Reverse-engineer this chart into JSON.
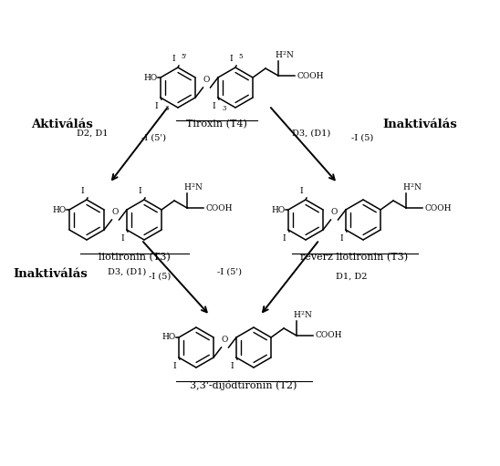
{
  "background_color": "#ffffff",
  "fig_width": 5.48,
  "fig_height": 5.11,
  "dpi": 100,
  "aktivalas_text": "Aktiválás",
  "inaktivalas_text": "Inaktiválás",
  "inaktivalas2_text": "Inaktiválás",
  "tiroxin_label": "Tiroxin (T4)",
  "liotironin_label": "liotironin (T3)",
  "reverz_label": "reverz liotironin (T3)",
  "dijod_label": "3,3’-dijódtironin (T2)",
  "text_color": "#000000",
  "line_color": "#000000"
}
